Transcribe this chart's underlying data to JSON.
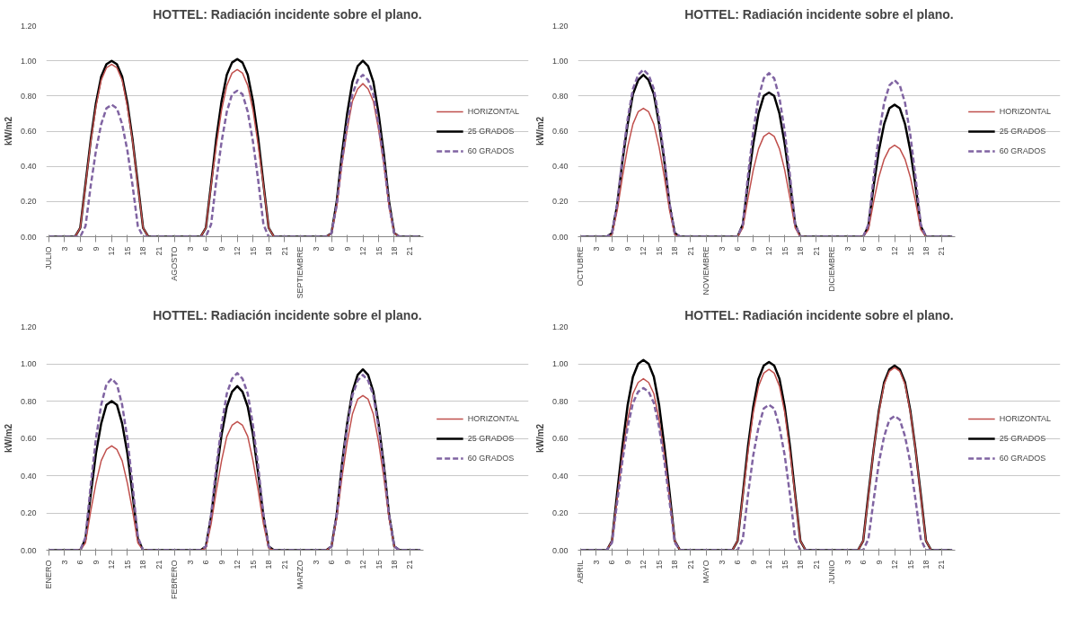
{
  "chart_data": [
    {
      "type": "line",
      "title": "HOTTEL: Radiación incidente sobre el plano.",
      "ylabel": "kW/m2",
      "grid": "y",
      "legend": "right",
      "marker": "none",
      "categories": [
        "JULIO",
        null,
        null,
        "3",
        null,
        null,
        "6",
        null,
        null,
        "9",
        null,
        null,
        "12",
        null,
        null,
        "15",
        null,
        null,
        "18",
        null,
        null,
        "21",
        null,
        null,
        "AGOSTO",
        null,
        null,
        "3",
        null,
        null,
        "6",
        null,
        null,
        "9",
        null,
        null,
        "12",
        null,
        null,
        "15",
        null,
        null,
        "18",
        null,
        null,
        "21",
        null,
        null,
        "SEPTIEMBRE",
        null,
        null,
        "3",
        null,
        null,
        "6",
        null,
        null,
        "9",
        null,
        null,
        "12",
        null,
        null,
        "15",
        null,
        null,
        "18",
        null,
        null,
        "21",
        null,
        null
      ],
      "ylim": [
        0,
        1.2
      ],
      "yticks": [
        {
          "value": 0,
          "label": "0.00"
        },
        {
          "value": 0.2,
          "label": "0.20"
        },
        {
          "value": 0.4,
          "label": "0.40"
        },
        {
          "value": 0.6,
          "label": "0.60"
        },
        {
          "value": 0.8,
          "label": "0.80"
        },
        {
          "value": 1.0,
          "label": "1.00"
        },
        {
          "value": 1.2,
          "label": "1.20"
        }
      ],
      "series": [
        {
          "name": "HORIZONTAL",
          "color": "#c0504d",
          "line_style": "solid",
          "values": [
            null,
            null,
            null,
            null,
            null,
            0,
            0.05,
            0.29,
            0.54,
            0.74,
            0.89,
            0.96,
            0.98,
            0.96,
            0.89,
            0.74,
            0.54,
            0.29,
            0.05,
            0,
            null,
            null,
            null,
            null,
            null,
            null,
            null,
            null,
            null,
            0,
            0.05,
            0.29,
            0.52,
            0.72,
            0.86,
            0.93,
            0.95,
            0.93,
            0.86,
            0.72,
            0.52,
            0.29,
            0.05,
            0,
            null,
            null,
            null,
            null,
            null,
            null,
            null,
            null,
            null,
            0,
            0.02,
            0.17,
            0.41,
            0.61,
            0.77,
            0.84,
            0.87,
            0.84,
            0.77,
            0.61,
            0.41,
            0.17,
            0.02,
            0,
            null,
            null,
            null,
            null
          ]
        },
        {
          "name": "25 GRADOS",
          "color": "#000000",
          "line_style": "solid",
          "values": [
            0,
            0,
            0,
            0,
            0,
            0,
            0.05,
            0.3,
            0.55,
            0.76,
            0.91,
            0.98,
            1,
            0.98,
            0.91,
            0.76,
            0.55,
            0.3,
            0.05,
            0,
            0,
            0,
            0,
            0,
            0,
            0,
            0,
            0,
            0,
            0,
            0.05,
            0.3,
            0.56,
            0.77,
            0.92,
            0.99,
            1.01,
            0.99,
            0.92,
            0.77,
            0.56,
            0.3,
            0.05,
            0,
            0,
            0,
            0,
            0,
            0,
            0,
            0,
            0,
            0,
            0,
            0.02,
            0.2,
            0.47,
            0.7,
            0.88,
            0.97,
            1,
            0.97,
            0.88,
            0.7,
            0.47,
            0.2,
            0.02,
            0,
            0,
            0,
            0,
            0
          ]
        },
        {
          "name": "60 GRADOS",
          "color": "#8064a2",
          "line_style": "dashed",
          "values": [
            0,
            0,
            0,
            0,
            0,
            0,
            0,
            0.06,
            0.29,
            0.49,
            0.64,
            0.73,
            0.75,
            0.73,
            0.64,
            0.49,
            0.29,
            0.06,
            0,
            0,
            0,
            0,
            0,
            0,
            0,
            0,
            0,
            0,
            0,
            0,
            0,
            0.07,
            0.32,
            0.54,
            0.71,
            0.81,
            0.83,
            0.81,
            0.71,
            0.54,
            0.32,
            0.07,
            0,
            0,
            0,
            0,
            0,
            0,
            0,
            0,
            0,
            0,
            0,
            0,
            0.02,
            0.18,
            0.43,
            0.64,
            0.81,
            0.89,
            0.92,
            0.89,
            0.81,
            0.64,
            0.43,
            0.18,
            0.02,
            0,
            0,
            0,
            0,
            0
          ]
        }
      ]
    },
    {
      "type": "line",
      "title": "HOTTEL: Radiación incidente sobre el plano.",
      "ylabel": "kW/m2",
      "grid": "y",
      "legend": "right",
      "marker": "none",
      "categories": [
        "OCTUBRE",
        null,
        null,
        "3",
        null,
        null,
        "6",
        null,
        null,
        "9",
        null,
        null,
        "12",
        null,
        null,
        "15",
        null,
        null,
        "18",
        null,
        null,
        "21",
        null,
        null,
        "NOVIEMBRE",
        null,
        null,
        "3",
        null,
        null,
        "6",
        null,
        null,
        "9",
        null,
        null,
        "12",
        null,
        null,
        "15",
        null,
        null,
        "18",
        null,
        null,
        "21",
        null,
        null,
        "DICIEMBRE",
        null,
        null,
        "3",
        null,
        null,
        "6",
        null,
        null,
        "9",
        null,
        null,
        "12",
        null,
        null,
        "15",
        null,
        null,
        "18",
        null,
        null,
        "21",
        null,
        null
      ],
      "ylim": [
        0,
        1.2
      ],
      "yticks": [
        {
          "value": 0,
          "label": "0.00"
        },
        {
          "value": 0.2,
          "label": "0.20"
        },
        {
          "value": 0.4,
          "label": "0.40"
        },
        {
          "value": 0.6,
          "label": "0.60"
        },
        {
          "value": 0.8,
          "label": "0.80"
        },
        {
          "value": 1.0,
          "label": "1.00"
        },
        {
          "value": 1.2,
          "label": "1.20"
        }
      ],
      "series": [
        {
          "name": "HORIZONTAL",
          "color": "#c0504d",
          "line_style": "solid",
          "values": [
            null,
            null,
            null,
            null,
            null,
            0,
            0.01,
            0.15,
            0.34,
            0.51,
            0.64,
            0.71,
            0.73,
            0.71,
            0.64,
            0.51,
            0.34,
            0.15,
            0.01,
            0,
            null,
            null,
            null,
            null,
            null,
            null,
            null,
            null,
            null,
            0,
            0,
            0.05,
            0.22,
            0.38,
            0.5,
            0.57,
            0.59,
            0.57,
            0.5,
            0.38,
            0.22,
            0.05,
            0,
            0,
            null,
            null,
            null,
            null,
            null,
            null,
            null,
            null,
            null,
            0,
            0,
            0.04,
            0.2,
            0.34,
            0.44,
            0.5,
            0.52,
            0.5,
            0.44,
            0.34,
            0.2,
            0.04,
            0,
            0,
            null,
            null,
            null,
            null
          ]
        },
        {
          "name": "25 GRADOS",
          "color": "#000000",
          "line_style": "solid",
          "values": [
            0,
            0,
            0,
            0,
            0,
            0,
            0.02,
            0.18,
            0.43,
            0.64,
            0.81,
            0.89,
            0.92,
            0.89,
            0.81,
            0.64,
            0.43,
            0.18,
            0.02,
            0,
            0,
            0,
            0,
            0,
            0,
            0,
            0,
            0,
            0,
            0,
            0,
            0.07,
            0.31,
            0.53,
            0.7,
            0.8,
            0.82,
            0.8,
            0.7,
            0.53,
            0.31,
            0.07,
            0,
            0,
            0,
            0,
            0,
            0,
            0,
            0,
            0,
            0,
            0,
            0,
            0,
            0.06,
            0.29,
            0.49,
            0.64,
            0.73,
            0.75,
            0.73,
            0.64,
            0.49,
            0.29,
            0.06,
            0,
            0,
            0,
            0,
            0,
            0
          ]
        },
        {
          "name": "60 GRADOS",
          "color": "#8064a2",
          "line_style": "dashed",
          "values": [
            0,
            0,
            0,
            0,
            0,
            0,
            0.02,
            0.19,
            0.45,
            0.67,
            0.84,
            0.92,
            0.95,
            0.92,
            0.84,
            0.67,
            0.45,
            0.19,
            0.02,
            0,
            0,
            0,
            0,
            0,
            0,
            0,
            0,
            0,
            0,
            0,
            0,
            0.07,
            0.35,
            0.6,
            0.79,
            0.9,
            0.93,
            0.9,
            0.79,
            0.6,
            0.35,
            0.07,
            0,
            0,
            0,
            0,
            0,
            0,
            0,
            0,
            0,
            0,
            0,
            0,
            0,
            0.07,
            0.34,
            0.58,
            0.76,
            0.86,
            0.89,
            0.86,
            0.76,
            0.58,
            0.34,
            0.07,
            0,
            0,
            0,
            0,
            0,
            0
          ]
        }
      ]
    },
    {
      "type": "line",
      "title": "HOTTEL: Radiación incidente sobre el plano.",
      "ylabel": "kW/m2",
      "grid": "y",
      "legend": "right",
      "marker": "none",
      "categories": [
        "ENERO",
        null,
        null,
        "3",
        null,
        null,
        "6",
        null,
        null,
        "9",
        null,
        null,
        "12",
        null,
        null,
        "15",
        null,
        null,
        "18",
        null,
        null,
        "21",
        null,
        null,
        "FEBRERO",
        null,
        null,
        "3",
        null,
        null,
        "6",
        null,
        null,
        "9",
        null,
        null,
        "12",
        null,
        null,
        "15",
        null,
        null,
        "18",
        null,
        null,
        "21",
        null,
        null,
        "MARZO",
        null,
        null,
        "3",
        null,
        null,
        "6",
        null,
        null,
        "9",
        null,
        null,
        "12",
        null,
        null,
        "15",
        null,
        null,
        "18",
        null,
        null,
        "21",
        null,
        null
      ],
      "ylim": [
        0,
        1.2
      ],
      "yticks": [
        {
          "value": 0,
          "label": "0.00"
        },
        {
          "value": 0.2,
          "label": "0.20"
        },
        {
          "value": 0.4,
          "label": "0.40"
        },
        {
          "value": 0.6,
          "label": "0.60"
        },
        {
          "value": 0.8,
          "label": "0.80"
        },
        {
          "value": 1.0,
          "label": "1.00"
        },
        {
          "value": 1.2,
          "label": "1.20"
        }
      ],
      "series": [
        {
          "name": "HORIZONTAL",
          "color": "#c0504d",
          "line_style": "solid",
          "values": [
            null,
            null,
            null,
            null,
            null,
            0,
            0,
            0.04,
            0.21,
            0.36,
            0.48,
            0.54,
            0.56,
            0.54,
            0.48,
            0.36,
            0.21,
            0.04,
            0,
            0,
            null,
            null,
            null,
            null,
            null,
            null,
            null,
            null,
            null,
            0,
            0.01,
            0.14,
            0.32,
            0.48,
            0.61,
            0.67,
            0.69,
            0.67,
            0.61,
            0.48,
            0.32,
            0.14,
            0.01,
            0,
            null,
            null,
            null,
            null,
            null,
            null,
            null,
            null,
            null,
            0,
            0.02,
            0.17,
            0.39,
            0.58,
            0.73,
            0.81,
            0.83,
            0.81,
            0.73,
            0.58,
            0.39,
            0.17,
            0.02,
            0,
            null,
            null,
            null,
            null
          ]
        },
        {
          "name": "25 GRADOS",
          "color": "#000000",
          "line_style": "solid",
          "values": [
            0,
            0,
            0,
            0,
            0,
            0,
            0,
            0.06,
            0.3,
            0.52,
            0.68,
            0.78,
            0.8,
            0.78,
            0.68,
            0.52,
            0.3,
            0.06,
            0,
            0,
            0,
            0,
            0,
            0,
            0,
            0,
            0,
            0,
            0,
            0,
            0.02,
            0.18,
            0.41,
            0.62,
            0.77,
            0.85,
            0.88,
            0.85,
            0.77,
            0.62,
            0.41,
            0.18,
            0.02,
            0,
            0,
            0,
            0,
            0,
            0,
            0,
            0,
            0,
            0,
            0,
            0.02,
            0.19,
            0.46,
            0.68,
            0.85,
            0.94,
            0.97,
            0.94,
            0.85,
            0.68,
            0.46,
            0.19,
            0.02,
            0,
            0,
            0,
            0,
            0
          ]
        },
        {
          "name": "60 GRADOS",
          "color": "#8064a2",
          "line_style": "dashed",
          "values": [
            0,
            0,
            0,
            0,
            0,
            0,
            0,
            0.07,
            0.35,
            0.6,
            0.78,
            0.89,
            0.92,
            0.89,
            0.78,
            0.6,
            0.35,
            0.07,
            0,
            0,
            0,
            0,
            0,
            0,
            0,
            0,
            0,
            0,
            0,
            0,
            0.02,
            0.19,
            0.45,
            0.67,
            0.84,
            0.92,
            0.95,
            0.92,
            0.84,
            0.67,
            0.45,
            0.19,
            0.02,
            0,
            0,
            0,
            0,
            0,
            0,
            0,
            0,
            0,
            0,
            0,
            0.02,
            0.19,
            0.44,
            0.66,
            0.83,
            0.91,
            0.94,
            0.91,
            0.83,
            0.66,
            0.44,
            0.19,
            0.02,
            0,
            0,
            0,
            0,
            0
          ]
        }
      ]
    },
    {
      "type": "line",
      "title": "HOTTEL: Radiación incidente sobre el plano.",
      "ylabel": "kW/m2",
      "grid": "y",
      "legend": "right",
      "marker": "none",
      "categories": [
        "ABRIL",
        null,
        null,
        "3",
        null,
        null,
        "6",
        null,
        null,
        "9",
        null,
        null,
        "12",
        null,
        null,
        "15",
        null,
        null,
        "18",
        null,
        null,
        "21",
        null,
        null,
        "MAYO",
        null,
        null,
        "3",
        null,
        null,
        "6",
        null,
        null,
        "9",
        null,
        null,
        "12",
        null,
        null,
        "15",
        null,
        null,
        "18",
        null,
        null,
        "21",
        null,
        null,
        "JUNIO",
        null,
        null,
        "3",
        null,
        null,
        "6",
        null,
        null,
        "9",
        null,
        null,
        "12",
        null,
        null,
        "15",
        null,
        null,
        "18",
        null,
        null,
        "21",
        null,
        null
      ],
      "ylim": [
        0,
        1.2
      ],
      "yticks": [
        {
          "value": 0,
          "label": "0.00"
        },
        {
          "value": 0.2,
          "label": "0.20"
        },
        {
          "value": 0.4,
          "label": "0.40"
        },
        {
          "value": 0.6,
          "label": "0.60"
        },
        {
          "value": 0.8,
          "label": "0.80"
        },
        {
          "value": 1.0,
          "label": "1.00"
        },
        {
          "value": 1.2,
          "label": "1.20"
        }
      ],
      "series": [
        {
          "name": "HORIZONTAL",
          "color": "#c0504d",
          "line_style": "solid",
          "values": [
            null,
            null,
            null,
            null,
            null,
            0,
            0.05,
            0.28,
            0.51,
            0.7,
            0.84,
            0.9,
            0.92,
            0.9,
            0.84,
            0.7,
            0.51,
            0.28,
            0.05,
            0,
            null,
            null,
            null,
            null,
            null,
            null,
            null,
            null,
            null,
            0,
            0.05,
            0.29,
            0.53,
            0.74,
            0.88,
            0.95,
            0.97,
            0.95,
            0.88,
            0.74,
            0.53,
            0.29,
            0.05,
            0,
            null,
            null,
            null,
            null,
            null,
            null,
            null,
            null,
            null,
            0,
            0.05,
            0.29,
            0.54,
            0.74,
            0.89,
            0.96,
            0.98,
            0.96,
            0.89,
            0.74,
            0.54,
            0.29,
            0.05,
            0,
            null,
            null,
            null,
            null
          ]
        },
        {
          "name": "25 GRADOS",
          "color": "#000000",
          "line_style": "solid",
          "values": [
            0,
            0,
            0,
            0,
            0,
            0,
            0.05,
            0.31,
            0.56,
            0.78,
            0.93,
            1,
            1.02,
            1,
            0.93,
            0.78,
            0.56,
            0.31,
            0.05,
            0,
            0,
            0,
            0,
            0,
            0,
            0,
            0,
            0,
            0,
            0,
            0.05,
            0.3,
            0.56,
            0.77,
            0.92,
            0.99,
            1.01,
            0.99,
            0.92,
            0.77,
            0.56,
            0.3,
            0.05,
            0,
            0,
            0,
            0,
            0,
            0,
            0,
            0,
            0,
            0,
            0,
            0.05,
            0.3,
            0.54,
            0.75,
            0.9,
            0.97,
            0.99,
            0.97,
            0.9,
            0.75,
            0.54,
            0.3,
            0.05,
            0,
            0,
            0,
            0,
            0
          ]
        },
        {
          "name": "60 GRADOS",
          "color": "#8064a2",
          "line_style": "dashed",
          "values": [
            0,
            0,
            0,
            0,
            0,
            0,
            0.04,
            0.26,
            0.48,
            0.66,
            0.79,
            0.85,
            0.87,
            0.85,
            0.79,
            0.66,
            0.48,
            0.26,
            0.04,
            0,
            0,
            0,
            0,
            0,
            0,
            0,
            0,
            0,
            0,
            0,
            0,
            0.06,
            0.3,
            0.51,
            0.66,
            0.76,
            0.78,
            0.76,
            0.66,
            0.51,
            0.3,
            0.06,
            0,
            0,
            0,
            0,
            0,
            0,
            0,
            0,
            0,
            0,
            0,
            0,
            0,
            0.06,
            0.27,
            0.47,
            0.61,
            0.7,
            0.72,
            0.7,
            0.61,
            0.47,
            0.27,
            0.06,
            0,
            0,
            0,
            0,
            0,
            0
          ]
        }
      ]
    }
  ]
}
